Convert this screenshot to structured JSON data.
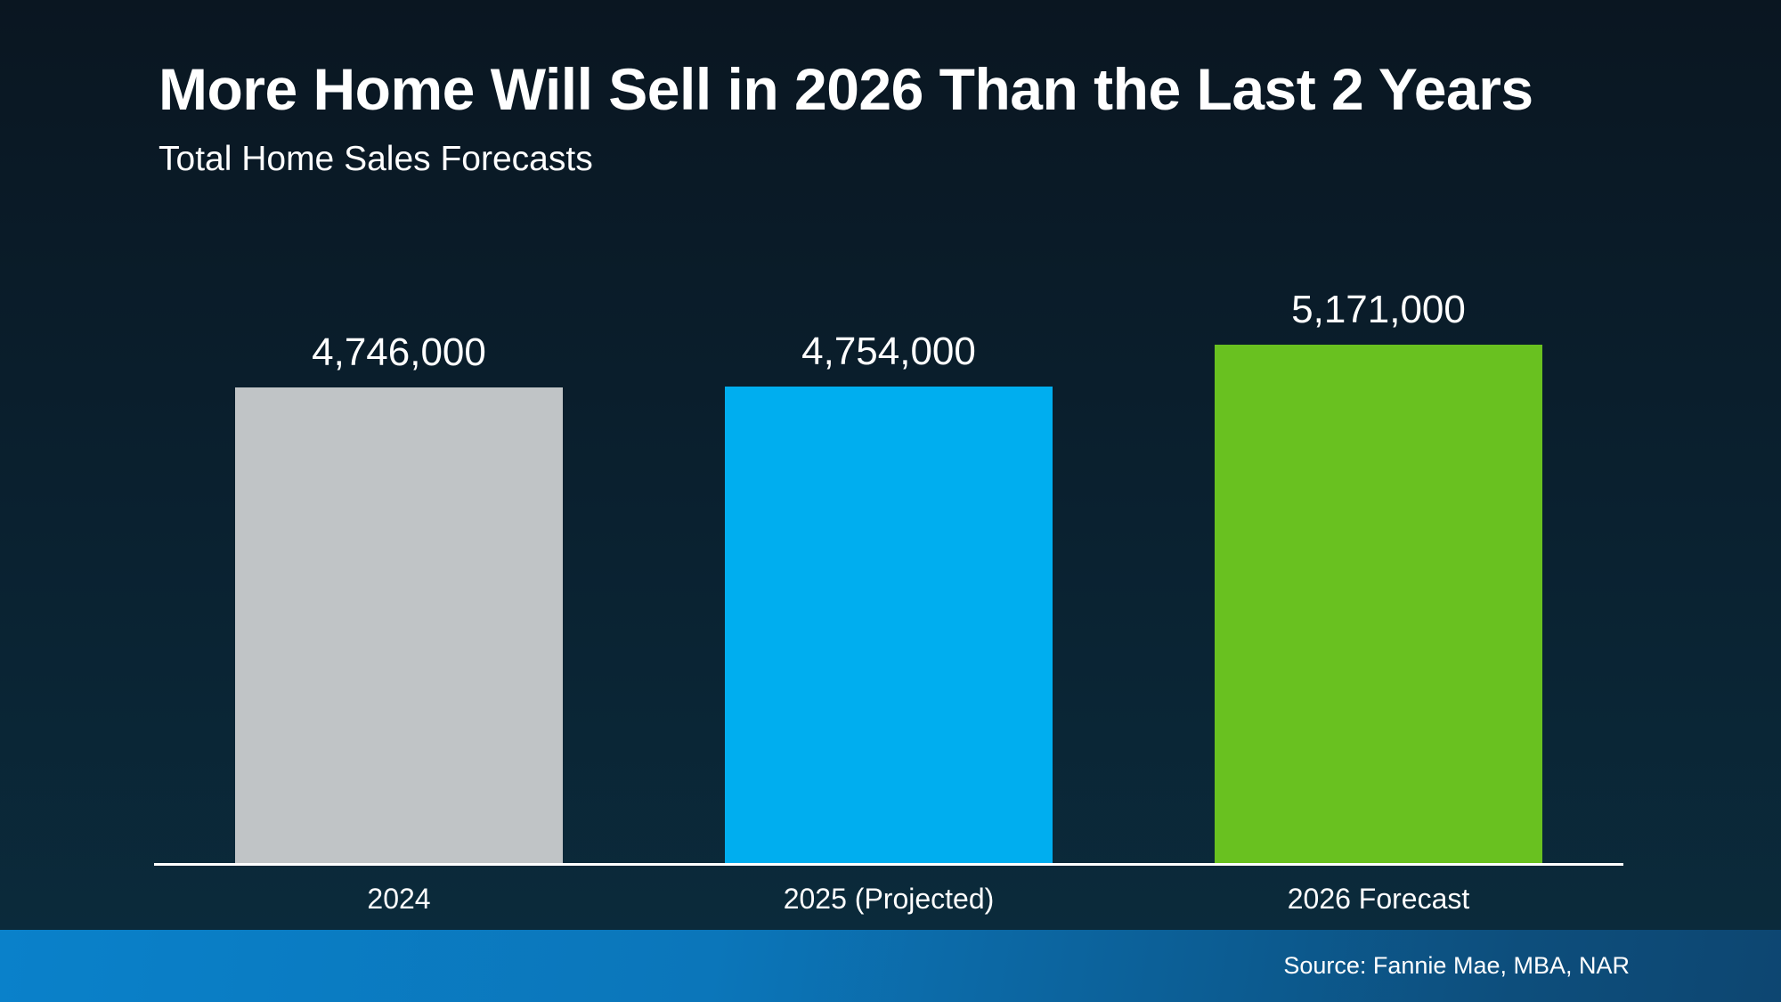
{
  "slide": {
    "title": "More Home Will Sell in 2026 Than the Last 2 Years",
    "subtitle": "Total Home Sales Forecasts",
    "source": "Source: Fannie Mae, MBA, NAR"
  },
  "colors": {
    "background_top": "#0a1621",
    "background_bottom": "#0b2c3d",
    "axis_line": "#ffffff",
    "text": "#ffffff",
    "footer_gradient_left": "#0a81ca",
    "footer_gradient_right": "#0d4671",
    "bar_2024": "#c0c4c6",
    "bar_2025": "#00aeef",
    "bar_2026": "#69c120"
  },
  "chart_data": {
    "type": "bar",
    "title": "More Home Will Sell in 2026 Than the Last 2 Years",
    "subtitle": "Total Home Sales Forecasts",
    "xlabel": "",
    "ylabel": "",
    "categories": [
      "2024",
      "2025 (Projected)",
      "2026 Forecast"
    ],
    "values": [
      4746000,
      4754000,
      5171000
    ],
    "value_labels": [
      "4,746,000",
      "4,754,000",
      "5,171,000"
    ],
    "bars": [
      {
        "category": "2024",
        "value": 4746000,
        "value_label": "4,746,000",
        "color": "#c0c4c6"
      },
      {
        "category": "2025 (Projected)",
        "value": 4754000,
        "value_label": "4,754,000",
        "color": "#00aeef"
      },
      {
        "category": "2026 Forecast",
        "value": 5171000,
        "value_label": "5,171,000",
        "color": "#69c120"
      }
    ],
    "ylim": [
      0,
      5800000
    ],
    "grid": false,
    "legend": "none",
    "y_axis_visible": false,
    "x_axis_visible": true,
    "source": "Source: Fannie Mae, MBA, NAR"
  }
}
